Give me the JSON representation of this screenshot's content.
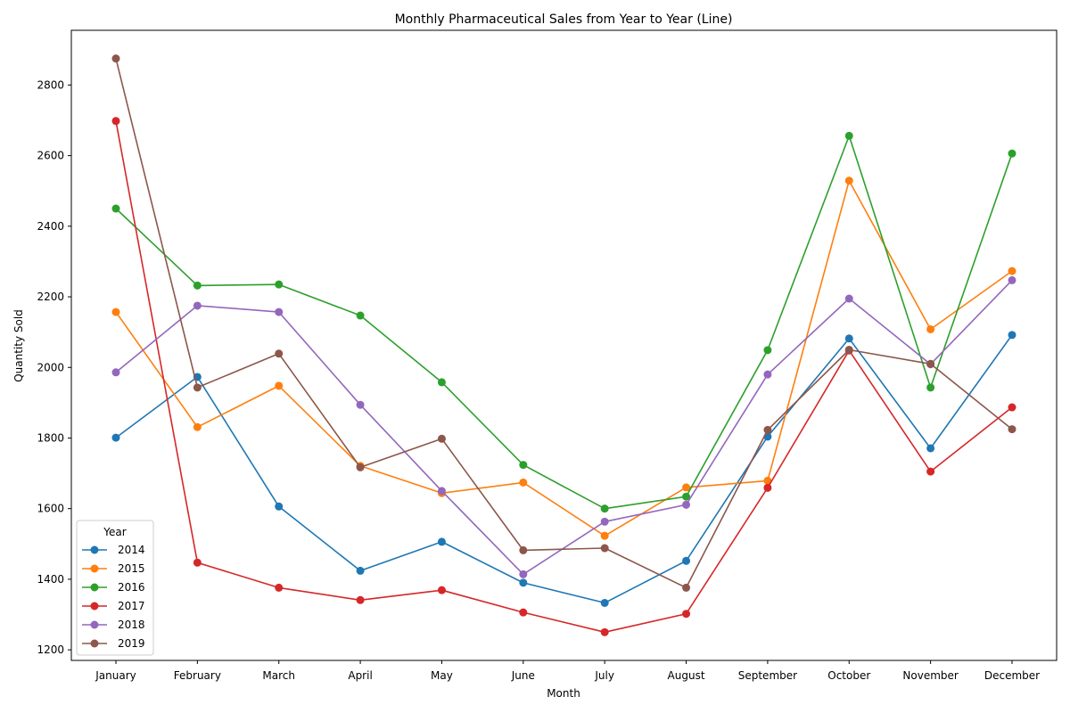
{
  "chart_data": {
    "type": "line",
    "title": "Monthly Pharmaceutical Sales from Year to Year (Line)",
    "xlabel": "Month",
    "ylabel": "Quantity Sold",
    "ylim": [
      1170,
      2955
    ],
    "yticks": [
      1200,
      1400,
      1600,
      1800,
      2000,
      2200,
      2400,
      2600,
      2800
    ],
    "grid": false,
    "marker": "circle",
    "legend": {
      "title": "Year",
      "placement": "lower-left"
    },
    "categories": [
      "January",
      "February",
      "March",
      "April",
      "May",
      "June",
      "July",
      "August",
      "September",
      "October",
      "November",
      "December"
    ],
    "series": [
      {
        "name": "2014",
        "color": "#1f77b4",
        "values": [
          1801,
          1973,
          1606,
          1424,
          1506,
          1390,
          1333,
          1452,
          1804,
          2082,
          1771,
          2092
        ]
      },
      {
        "name": "2015",
        "color": "#ff7f0e",
        "values": [
          2157,
          1831,
          1948,
          1721,
          1644,
          1674,
          1523,
          1660,
          1679,
          2529,
          2108,
          2273
        ]
      },
      {
        "name": "2016",
        "color": "#2ca02c",
        "values": [
          2450,
          2232,
          2235,
          2147,
          1958,
          1724,
          1600,
          1634,
          2049,
          2656,
          1943,
          2606
        ]
      },
      {
        "name": "2017",
        "color": "#d62728",
        "values": [
          2698,
          1447,
          1376,
          1341,
          1369,
          1306,
          1250,
          1302,
          1659,
          2048,
          1705,
          1887
        ]
      },
      {
        "name": "2018",
        "color": "#9467bd",
        "values": [
          1986,
          2175,
          2157,
          1894,
          1650,
          1414,
          1563,
          1611,
          1980,
          2195,
          2009,
          2247
        ]
      },
      {
        "name": "2019",
        "color": "#8c564b",
        "values": [
          2875,
          1943,
          2039,
          1717,
          1798,
          1482,
          1488,
          1376,
          1823,
          2050,
          2010,
          1825
        ]
      }
    ]
  }
}
